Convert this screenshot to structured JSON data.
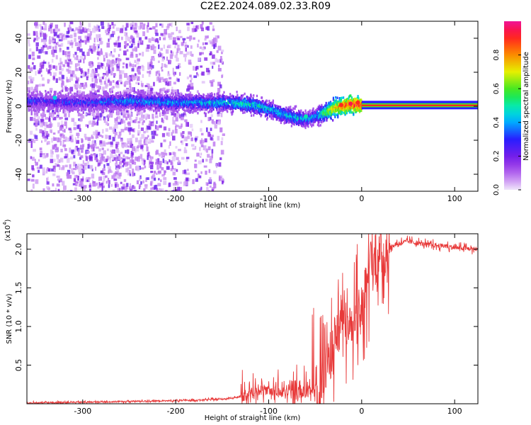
{
  "title": "C2E2.2024.089.02.33.R09",
  "chart_data": [
    {
      "type": "heatmap",
      "name": "spectrogram",
      "xlabel": "Height of straight line (km)",
      "ylabel": "Frequency (Hz)",
      "xlim": [
        -360,
        125
      ],
      "ylim": [
        -50,
        50
      ],
      "xticks": [
        -300,
        -200,
        -100,
        0,
        100
      ],
      "xtick_labels": [
        "-300",
        "-200",
        "-100",
        "0",
        "100"
      ],
      "yticks": [
        -40,
        -20,
        0,
        20,
        40
      ],
      "ytick_labels": [
        "-40",
        "-20",
        "0",
        "20",
        "40"
      ],
      "colorbar": {
        "label": "Normalized spectral amplitude",
        "range": [
          0,
          1
        ],
        "ticks": [
          0.0,
          0.2,
          0.4,
          0.6,
          0.8
        ],
        "tick_labels": [
          "0.0",
          "0.2",
          "0.4",
          "0.6",
          "0.8"
        ],
        "colormap": "rainbow"
      },
      "ridge": {
        "x": [
          -360,
          -300,
          -250,
          -200,
          -150,
          -120,
          -100,
          -85,
          -70,
          -60,
          -50,
          -40,
          -30,
          -20,
          -10,
          0,
          125
        ],
        "freq": [
          3,
          2,
          3,
          2,
          2,
          1,
          -2,
          -5,
          -7,
          -8,
          -6,
          -4,
          -1,
          0,
          1,
          0.5,
          0.5
        ],
        "peak_amplitude": [
          0.3,
          0.3,
          0.4,
          0.4,
          0.45,
          0.5,
          0.45,
          0.45,
          0.45,
          0.4,
          0.4,
          0.6,
          0.75,
          0.85,
          0.9,
          0.9,
          0.92
        ]
      },
      "scatter_noise_region": {
        "x_from": -360,
        "x_to": -170,
        "freq_range": [
          -50,
          50
        ]
      }
    },
    {
      "type": "line",
      "name": "snr",
      "xlabel": "Height of straight line (km)",
      "ylabel": "SNR (10 * v/v)",
      "y_multiplier_label": "(x10",
      "y_multiplier_exp": "4",
      "y_multiplier_close": ")",
      "xlim": [
        -360,
        125
      ],
      "ylim": [
        0,
        2.2
      ],
      "xticks": [
        -300,
        -200,
        -100,
        0,
        100
      ],
      "xtick_labels": [
        "-300",
        "-200",
        "-100",
        "0",
        "100"
      ],
      "yticks": [
        0.5,
        1.0,
        1.5,
        2.0
      ],
      "ytick_labels": [
        "0.5",
        "1.0",
        "1.5",
        "2.0"
      ],
      "color": "#e83a3a",
      "series": [
        {
          "name": "SNR",
          "x": [
            -360,
            -300,
            -250,
            -200,
            -170,
            -150,
            -130,
            -120,
            -110,
            -100,
            -90,
            -80,
            -70,
            -60,
            -50,
            -45,
            -40,
            -35,
            -30,
            -25,
            -20,
            -15,
            -10,
            -5,
            0,
            5,
            10,
            15,
            20,
            25,
            30,
            40,
            50,
            60,
            70,
            80,
            90,
            100,
            110,
            125
          ],
          "y": [
            0.01,
            0.02,
            0.03,
            0.04,
            0.05,
            0.06,
            0.09,
            0.13,
            0.17,
            0.18,
            0.15,
            0.14,
            0.13,
            0.13,
            0.16,
            0.25,
            0.4,
            0.55,
            0.8,
            0.95,
            1.05,
            1.1,
            1.15,
            1.2,
            1.3,
            1.55,
            1.75,
            1.85,
            1.9,
            1.95,
            2.02,
            2.08,
            2.1,
            2.08,
            2.06,
            2.05,
            2.04,
            2.02,
            2.01,
            2.0
          ]
        }
      ]
    }
  ]
}
